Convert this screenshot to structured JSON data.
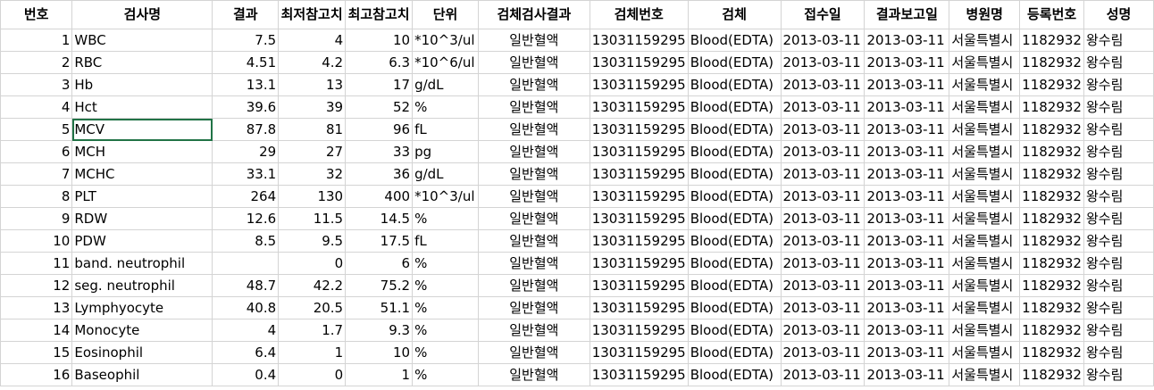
{
  "headers": [
    "번호",
    "검사명",
    "결과",
    "최저참고치",
    "최고참고치",
    "단위",
    "검체검사결과",
    "검체번호",
    "검체",
    "접수일",
    "결과보고일",
    "병원명",
    "등록번호",
    "성명"
  ],
  "rows": [
    [
      "1",
      "WBC",
      "7.5",
      "4",
      "10",
      "*10^3/ul",
      "일반혈액",
      "13031159295",
      "Blood(EDTA)",
      "2013-03-11",
      "2013-03-11",
      "서울특별시",
      "1182932",
      "왕수림"
    ],
    [
      "2",
      "RBC",
      "4.51",
      "4.2",
      "6.3",
      "*10^6/ul",
      "일반혈액",
      "13031159295",
      "Blood(EDTA)",
      "2013-03-11",
      "2013-03-11",
      "서울특별시",
      "1182932",
      "왕수림"
    ],
    [
      "3",
      "Hb",
      "13.1",
      "13",
      "17",
      "g/dL",
      "일반혈액",
      "13031159295",
      "Blood(EDTA)",
      "2013-03-11",
      "2013-03-11",
      "서울특별시",
      "1182932",
      "왕수림"
    ],
    [
      "4",
      "Hct",
      "39.6",
      "39",
      "52",
      "%",
      "일반혈액",
      "13031159295",
      "Blood(EDTA)",
      "2013-03-11",
      "2013-03-11",
      "서울특별시",
      "1182932",
      "왕수림"
    ],
    [
      "5",
      "MCV",
      "87.8",
      "81",
      "96",
      "fL",
      "일반혈액",
      "13031159295",
      "Blood(EDTA)",
      "2013-03-11",
      "2013-03-11",
      "서울특별시",
      "1182932",
      "왕수림"
    ],
    [
      "6",
      "MCH",
      "29",
      "27",
      "33",
      "pg",
      "일반혈액",
      "13031159295",
      "Blood(EDTA)",
      "2013-03-11",
      "2013-03-11",
      "서울특별시",
      "1182932",
      "왕수림"
    ],
    [
      "7",
      "MCHC",
      "33.1",
      "32",
      "36",
      "g/dL",
      "일반혈액",
      "13031159295",
      "Blood(EDTA)",
      "2013-03-11",
      "2013-03-11",
      "서울특별시",
      "1182932",
      "왕수림"
    ],
    [
      "8",
      "PLT",
      "264",
      "130",
      "400",
      "*10^3/ul",
      "일반혈액",
      "13031159295",
      "Blood(EDTA)",
      "2013-03-11",
      "2013-03-11",
      "서울특별시",
      "1182932",
      "왕수림"
    ],
    [
      "9",
      "RDW",
      "12.6",
      "11.5",
      "14.5",
      "%",
      "일반혈액",
      "13031159295",
      "Blood(EDTA)",
      "2013-03-11",
      "2013-03-11",
      "서울특별시",
      "1182932",
      "왕수림"
    ],
    [
      "10",
      "PDW",
      "8.5",
      "9.5",
      "17.5",
      "fL",
      "일반혈액",
      "13031159295",
      "Blood(EDTA)",
      "2013-03-11",
      "2013-03-11",
      "서울특별시",
      "1182932",
      "왕수림"
    ],
    [
      "11",
      "band. neutrophil",
      "",
      "0",
      "6",
      "%",
      "일반혈액",
      "13031159295",
      "Blood(EDTA)",
      "2013-03-11",
      "2013-03-11",
      "서울특별시",
      "1182932",
      "왕수림"
    ],
    [
      "12",
      "seg. neutrophil",
      "48.7",
      "42.2",
      "75.2",
      "%",
      "일반혈액",
      "13031159295",
      "Blood(EDTA)",
      "2013-03-11",
      "2013-03-11",
      "서울특별시",
      "1182932",
      "왕수림"
    ],
    [
      "13",
      "Lymphyocyte",
      "40.8",
      "20.5",
      "51.1",
      "%",
      "일반혈액",
      "13031159295",
      "Blood(EDTA)",
      "2013-03-11",
      "2013-03-11",
      "서울특별시",
      "1182932",
      "왕수림"
    ],
    [
      "14",
      "Monocyte",
      "4",
      "1.7",
      "9.3",
      "%",
      "일반혈액",
      "13031159295",
      "Blood(EDTA)",
      "2013-03-11",
      "2013-03-11",
      "서울특별시",
      "1182932",
      "왕수림"
    ],
    [
      "15",
      "Eosinophil",
      "6.4",
      "1",
      "10",
      "%",
      "일반혈액",
      "13031159295",
      "Blood(EDTA)",
      "2013-03-11",
      "2013-03-11",
      "서울특별시",
      "1182932",
      "왕수림"
    ],
    [
      "16",
      "Baseophil",
      "0.4",
      "0",
      "1",
      "%",
      "일반혈액",
      "13031159295",
      "Blood(EDTA)",
      "2013-03-11",
      "2013-03-11",
      "서울특별시",
      "1182932",
      "왕수림"
    ]
  ],
  "selected_cell": {
    "row": 4,
    "col": 2
  }
}
